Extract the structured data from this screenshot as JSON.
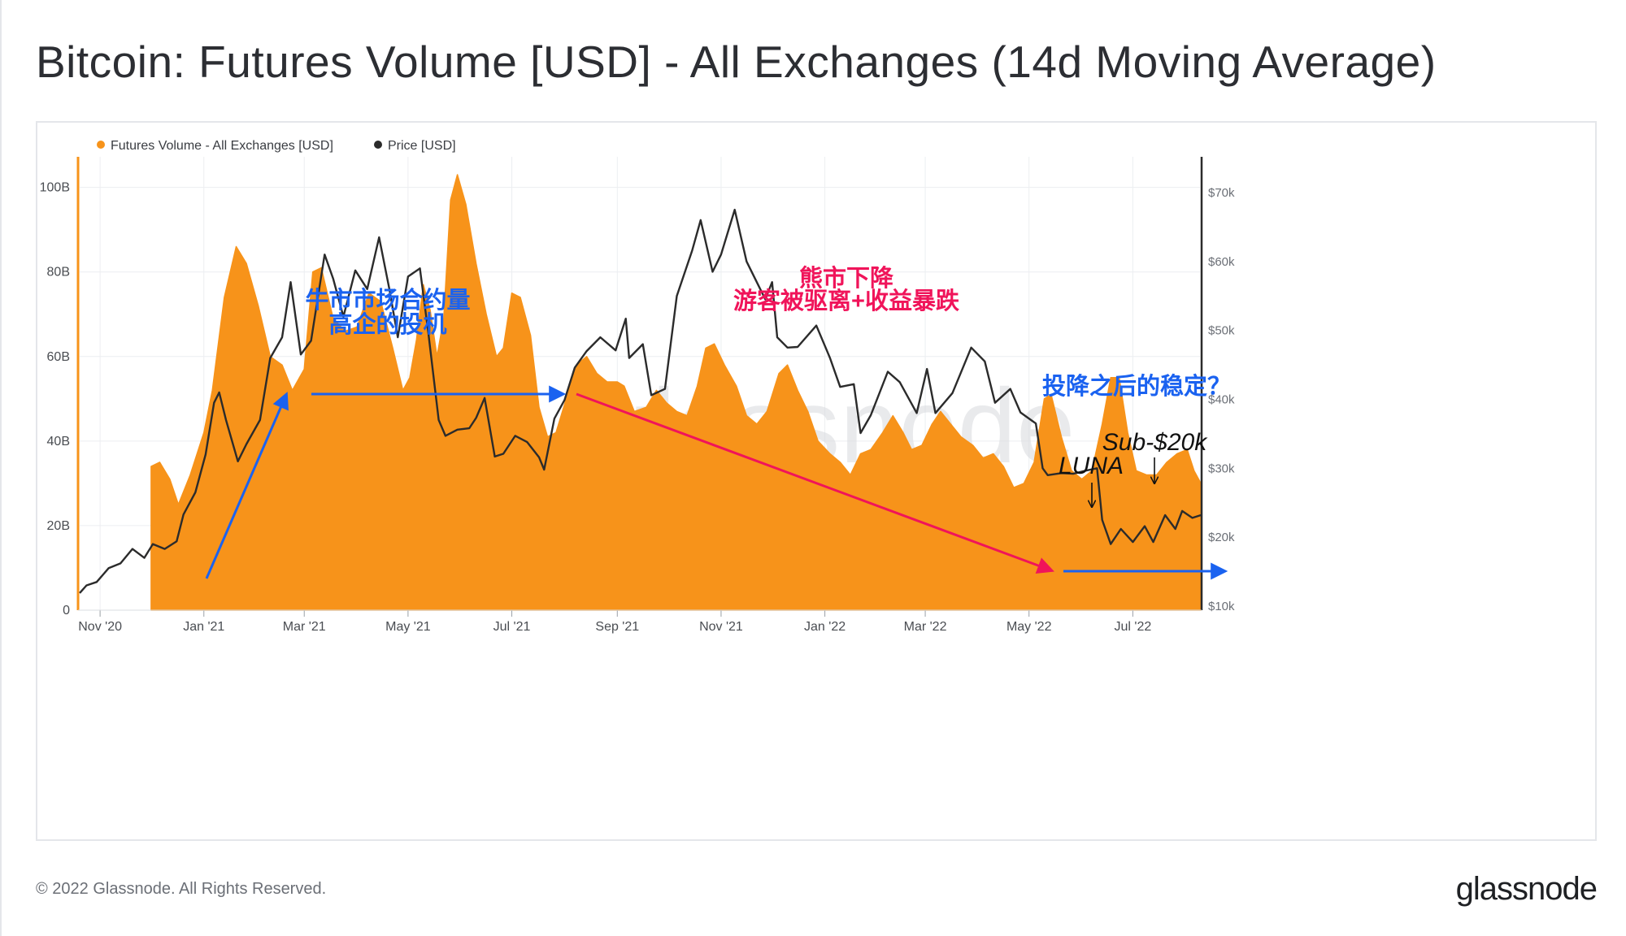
{
  "title": "Bitcoin: Futures Volume [USD] - All Exchanges (14d Moving Average)",
  "footer": {
    "copyright": "© 2022 Glassnode. All Rights Reserved.",
    "logo": "glassnode"
  },
  "watermark": "glassnode",
  "colors": {
    "volume": "#f7931a",
    "price": "#2b2b2b",
    "blue_annotation": "#1a62f0",
    "red_annotation": "#f0145a",
    "grid": "#eceef1"
  },
  "chart_data": {
    "type": "area",
    "title": "Bitcoin: Futures Volume [USD] - All Exchanges (14d Moving Average)",
    "legend": {
      "placement": "top-left",
      "entries": [
        {
          "label": "Futures Volume - All Exchanges [USD]",
          "color": "#f7931a"
        },
        {
          "label": "Price [USD]",
          "color": "#2b2b2b"
        }
      ]
    },
    "x_axis": {
      "type": "date",
      "range": [
        "2020-10-20",
        "2022-08-20"
      ],
      "ticks": [
        {
          "date": "2020-11-01",
          "label": "Nov '20"
        },
        {
          "date": "2021-01-01",
          "label": "Jan '21"
        },
        {
          "date": "2021-03-01",
          "label": "Mar '21"
        },
        {
          "date": "2021-05-01",
          "label": "May '21"
        },
        {
          "date": "2021-07-01",
          "label": "Jul '21"
        },
        {
          "date": "2021-09-01",
          "label": "Sep '21"
        },
        {
          "date": "2021-11-01",
          "label": "Nov '21"
        },
        {
          "date": "2022-01-01",
          "label": "Jan '22"
        },
        {
          "date": "2022-03-01",
          "label": "Mar '22"
        },
        {
          "date": "2022-05-01",
          "label": "May '22"
        },
        {
          "date": "2022-07-01",
          "label": "Jul '22"
        }
      ]
    },
    "y_left": {
      "range": [
        0,
        108000000000
      ],
      "ticks": [
        {
          "value": 0,
          "label": "0"
        },
        {
          "value": 20000000000,
          "label": "20B"
        },
        {
          "value": 40000000000,
          "label": "40B"
        },
        {
          "value": 60000000000,
          "label": "60B"
        },
        {
          "value": 80000000000,
          "label": "80B"
        },
        {
          "value": 100000000000,
          "label": "100B"
        }
      ]
    },
    "y_right": {
      "range": [
        10000,
        74000
      ],
      "ticks": [
        {
          "value": 10000,
          "label": "$10k"
        },
        {
          "value": 20000,
          "label": "$20k"
        },
        {
          "value": 30000,
          "label": "$30k"
        },
        {
          "value": 40000,
          "label": "$40k"
        },
        {
          "value": 50000,
          "label": "$50k"
        },
        {
          "value": 60000,
          "label": "$60k"
        },
        {
          "value": 70000,
          "label": "$70k"
        }
      ]
    },
    "grid": true,
    "series": [
      {
        "name": "Futures Volume - All Exchanges [USD]",
        "type": "area",
        "axis": "left",
        "points": [
          [
            "2020-12-01",
            0
          ],
          [
            "2020-12-01",
            34000000000
          ],
          [
            "2020-12-06",
            35000000000
          ],
          [
            "2020-12-12",
            31000000000
          ],
          [
            "2020-12-17",
            25000000000
          ],
          [
            "2020-12-24",
            32000000000
          ],
          [
            "2021-01-01",
            42000000000
          ],
          [
            "2021-01-06",
            52000000000
          ],
          [
            "2021-01-13",
            74000000000
          ],
          [
            "2021-01-20",
            86000000000
          ],
          [
            "2021-01-26",
            82000000000
          ],
          [
            "2021-02-02",
            72000000000
          ],
          [
            "2021-02-09",
            60000000000
          ],
          [
            "2021-02-16",
            58000000000
          ],
          [
            "2021-02-22",
            52000000000
          ],
          [
            "2021-03-01",
            57000000000
          ],
          [
            "2021-03-06",
            80000000000
          ],
          [
            "2021-03-11",
            81000000000
          ],
          [
            "2021-03-18",
            69000000000
          ],
          [
            "2021-03-25",
            66000000000
          ],
          [
            "2021-04-01",
            67000000000
          ],
          [
            "2021-04-08",
            75000000000
          ],
          [
            "2021-04-15",
            73000000000
          ],
          [
            "2021-04-22",
            62000000000
          ],
          [
            "2021-04-28",
            52000000000
          ],
          [
            "2021-05-02",
            55000000000
          ],
          [
            "2021-05-06",
            64000000000
          ],
          [
            "2021-05-10",
            77000000000
          ],
          [
            "2021-05-14",
            71000000000
          ],
          [
            "2021-05-18",
            60000000000
          ],
          [
            "2021-05-22",
            69000000000
          ],
          [
            "2021-05-26",
            97000000000
          ],
          [
            "2021-05-30",
            103000000000
          ],
          [
            "2021-06-04",
            96000000000
          ],
          [
            "2021-06-10",
            82000000000
          ],
          [
            "2021-06-16",
            70000000000
          ],
          [
            "2021-06-22",
            60000000000
          ],
          [
            "2021-06-26",
            62000000000
          ],
          [
            "2021-07-01",
            75000000000
          ],
          [
            "2021-07-06",
            74000000000
          ],
          [
            "2021-07-12",
            65000000000
          ],
          [
            "2021-07-17",
            48000000000
          ],
          [
            "2021-07-22",
            41000000000
          ],
          [
            "2021-07-27",
            42000000000
          ],
          [
            "2021-08-02",
            50000000000
          ],
          [
            "2021-08-08",
            58000000000
          ],
          [
            "2021-08-14",
            60000000000
          ],
          [
            "2021-08-20",
            56000000000
          ],
          [
            "2021-08-26",
            54000000000
          ],
          [
            "2021-09-01",
            54000000000
          ],
          [
            "2021-09-05",
            53000000000
          ],
          [
            "2021-09-11",
            47000000000
          ],
          [
            "2021-09-18",
            48000000000
          ],
          [
            "2021-09-24",
            52000000000
          ],
          [
            "2021-09-30",
            49000000000
          ],
          [
            "2021-10-06",
            47000000000
          ],
          [
            "2021-10-12",
            46000000000
          ],
          [
            "2021-10-18",
            53000000000
          ],
          [
            "2021-10-23",
            62000000000
          ],
          [
            "2021-10-28",
            63000000000
          ],
          [
            "2021-11-03",
            58000000000
          ],
          [
            "2021-11-10",
            53000000000
          ],
          [
            "2021-11-16",
            46000000000
          ],
          [
            "2021-11-22",
            44000000000
          ],
          [
            "2021-11-28",
            47000000000
          ],
          [
            "2021-12-05",
            56000000000
          ],
          [
            "2021-12-10",
            58000000000
          ],
          [
            "2021-12-16",
            52000000000
          ],
          [
            "2021-12-22",
            47000000000
          ],
          [
            "2021-12-28",
            40000000000
          ],
          [
            "2022-01-04",
            37000000000
          ],
          [
            "2022-01-10",
            35000000000
          ],
          [
            "2022-01-16",
            32000000000
          ],
          [
            "2022-01-22",
            37000000000
          ],
          [
            "2022-01-28",
            38000000000
          ],
          [
            "2022-02-04",
            42000000000
          ],
          [
            "2022-02-10",
            46000000000
          ],
          [
            "2022-02-16",
            42000000000
          ],
          [
            "2022-02-21",
            38000000000
          ],
          [
            "2022-02-27",
            39000000000
          ],
          [
            "2022-03-05",
            44000000000
          ],
          [
            "2022-03-10",
            47000000000
          ],
          [
            "2022-03-16",
            44000000000
          ],
          [
            "2022-03-22",
            41000000000
          ],
          [
            "2022-03-29",
            39000000000
          ],
          [
            "2022-04-04",
            36000000000
          ],
          [
            "2022-04-10",
            37000000000
          ],
          [
            "2022-04-16",
            34000000000
          ],
          [
            "2022-04-22",
            29000000000
          ],
          [
            "2022-04-28",
            30000000000
          ],
          [
            "2022-05-04",
            35000000000
          ],
          [
            "2022-05-10",
            50000000000
          ],
          [
            "2022-05-14",
            51000000000
          ],
          [
            "2022-05-20",
            41000000000
          ],
          [
            "2022-05-26",
            33000000000
          ],
          [
            "2022-06-01",
            31000000000
          ],
          [
            "2022-06-07",
            33000000000
          ],
          [
            "2022-06-13",
            44000000000
          ],
          [
            "2022-06-18",
            55000000000
          ],
          [
            "2022-06-23",
            55000000000
          ],
          [
            "2022-06-28",
            42000000000
          ],
          [
            "2022-07-03",
            33000000000
          ],
          [
            "2022-07-09",
            32000000000
          ],
          [
            "2022-07-15",
            32000000000
          ],
          [
            "2022-07-21",
            35000000000
          ],
          [
            "2022-07-27",
            37000000000
          ],
          [
            "2022-08-02",
            38000000000
          ],
          [
            "2022-08-06",
            33000000000
          ],
          [
            "2022-08-10",
            30000000000
          ],
          [
            "2022-08-10",
            0
          ]
        ]
      },
      {
        "name": "Price [USD]",
        "type": "line",
        "axis": "right",
        "points": [
          [
            "2020-10-20",
            11900
          ],
          [
            "2020-10-24",
            13000
          ],
          [
            "2020-10-30",
            13500
          ],
          [
            "2020-11-06",
            15500
          ],
          [
            "2020-11-13",
            16200
          ],
          [
            "2020-11-20",
            18300
          ],
          [
            "2020-11-27",
            17000
          ],
          [
            "2020-12-02",
            19000
          ],
          [
            "2020-12-09",
            18300
          ],
          [
            "2020-12-16",
            19400
          ],
          [
            "2020-12-20",
            23300
          ],
          [
            "2020-12-27",
            26500
          ],
          [
            "2021-01-02",
            32000
          ],
          [
            "2021-01-07",
            39500
          ],
          [
            "2021-01-10",
            41000
          ],
          [
            "2021-01-14",
            37000
          ],
          [
            "2021-01-21",
            31000
          ],
          [
            "2021-01-26",
            33500
          ],
          [
            "2021-02-03",
            37000
          ],
          [
            "2021-02-09",
            46000
          ],
          [
            "2021-02-16",
            49000
          ],
          [
            "2021-02-21",
            57000
          ],
          [
            "2021-02-27",
            46500
          ],
          [
            "2021-03-05",
            48500
          ],
          [
            "2021-03-13",
            61000
          ],
          [
            "2021-03-18",
            57500
          ],
          [
            "2021-03-24",
            52000
          ],
          [
            "2021-03-31",
            58700
          ],
          [
            "2021-04-07",
            56000
          ],
          [
            "2021-04-14",
            63500
          ],
          [
            "2021-04-20",
            56000
          ],
          [
            "2021-04-25",
            49000
          ],
          [
            "2021-05-01",
            57800
          ],
          [
            "2021-05-08",
            59000
          ],
          [
            "2021-05-13",
            49500
          ],
          [
            "2021-05-19",
            37000
          ],
          [
            "2021-05-23",
            34700
          ],
          [
            "2021-05-30",
            35600
          ],
          [
            "2021-06-06",
            35800
          ],
          [
            "2021-06-10",
            37300
          ],
          [
            "2021-06-15",
            40200
          ],
          [
            "2021-06-21",
            31700
          ],
          [
            "2021-06-26",
            32100
          ],
          [
            "2021-07-03",
            34700
          ],
          [
            "2021-07-10",
            33800
          ],
          [
            "2021-07-17",
            31600
          ],
          [
            "2021-07-20",
            29800
          ],
          [
            "2021-07-26",
            37200
          ],
          [
            "2021-08-01",
            39900
          ],
          [
            "2021-08-07",
            44600
          ],
          [
            "2021-08-14",
            47000
          ],
          [
            "2021-08-22",
            49000
          ],
          [
            "2021-08-31",
            47100
          ],
          [
            "2021-09-06",
            51700
          ],
          [
            "2021-09-08",
            46000
          ],
          [
            "2021-09-16",
            48000
          ],
          [
            "2021-09-21",
            40600
          ],
          [
            "2021-09-29",
            41500
          ],
          [
            "2021-10-06",
            55000
          ],
          [
            "2021-10-15",
            61600
          ],
          [
            "2021-10-20",
            66000
          ],
          [
            "2021-10-27",
            58500
          ],
          [
            "2021-11-01",
            61000
          ],
          [
            "2021-11-09",
            67500
          ],
          [
            "2021-11-16",
            60000
          ],
          [
            "2021-11-20",
            58000
          ],
          [
            "2021-11-27",
            54500
          ],
          [
            "2021-12-01",
            57000
          ],
          [
            "2021-12-04",
            49000
          ],
          [
            "2021-12-10",
            47500
          ],
          [
            "2021-12-16",
            47600
          ],
          [
            "2021-12-27",
            50700
          ],
          [
            "2022-01-04",
            46000
          ],
          [
            "2022-01-10",
            41800
          ],
          [
            "2022-01-18",
            42200
          ],
          [
            "2022-01-22",
            35100
          ],
          [
            "2022-01-28",
            37700
          ],
          [
            "2022-02-07",
            44000
          ],
          [
            "2022-02-14",
            42500
          ],
          [
            "2022-02-24",
            38000
          ],
          [
            "2022-03-02",
            44400
          ],
          [
            "2022-03-07",
            38000
          ],
          [
            "2022-03-17",
            40900
          ],
          [
            "2022-03-28",
            47500
          ],
          [
            "2022-04-05",
            45500
          ],
          [
            "2022-04-11",
            39500
          ],
          [
            "2022-04-20",
            41500
          ],
          [
            "2022-04-26",
            38100
          ],
          [
            "2022-05-05",
            36500
          ],
          [
            "2022-05-09",
            30000
          ],
          [
            "2022-05-12",
            29000
          ],
          [
            "2022-05-20",
            29300
          ],
          [
            "2022-05-27",
            29200
          ],
          [
            "2022-06-04",
            29700
          ],
          [
            "2022-06-10",
            30000
          ],
          [
            "2022-06-13",
            22500
          ],
          [
            "2022-06-18",
            19000
          ],
          [
            "2022-06-24",
            21200
          ],
          [
            "2022-07-01",
            19300
          ],
          [
            "2022-07-08",
            21600
          ],
          [
            "2022-07-13",
            19300
          ],
          [
            "2022-07-20",
            23200
          ],
          [
            "2022-07-26",
            21200
          ],
          [
            "2022-07-30",
            23800
          ],
          [
            "2022-08-05",
            22800
          ],
          [
            "2022-08-10",
            23200
          ]
        ]
      }
    ],
    "annotations": {
      "bull_text_line1": "牛市市场合约量",
      "bull_text_line2": "高企的投机",
      "bear_text_line1": "熊市下降",
      "bear_text_line2": "游客被驱离+收益暴跌",
      "stable_text": "投降之后的稳定？",
      "luna_label": "LUNA",
      "sub20k_label": "Sub-$20k"
    }
  }
}
